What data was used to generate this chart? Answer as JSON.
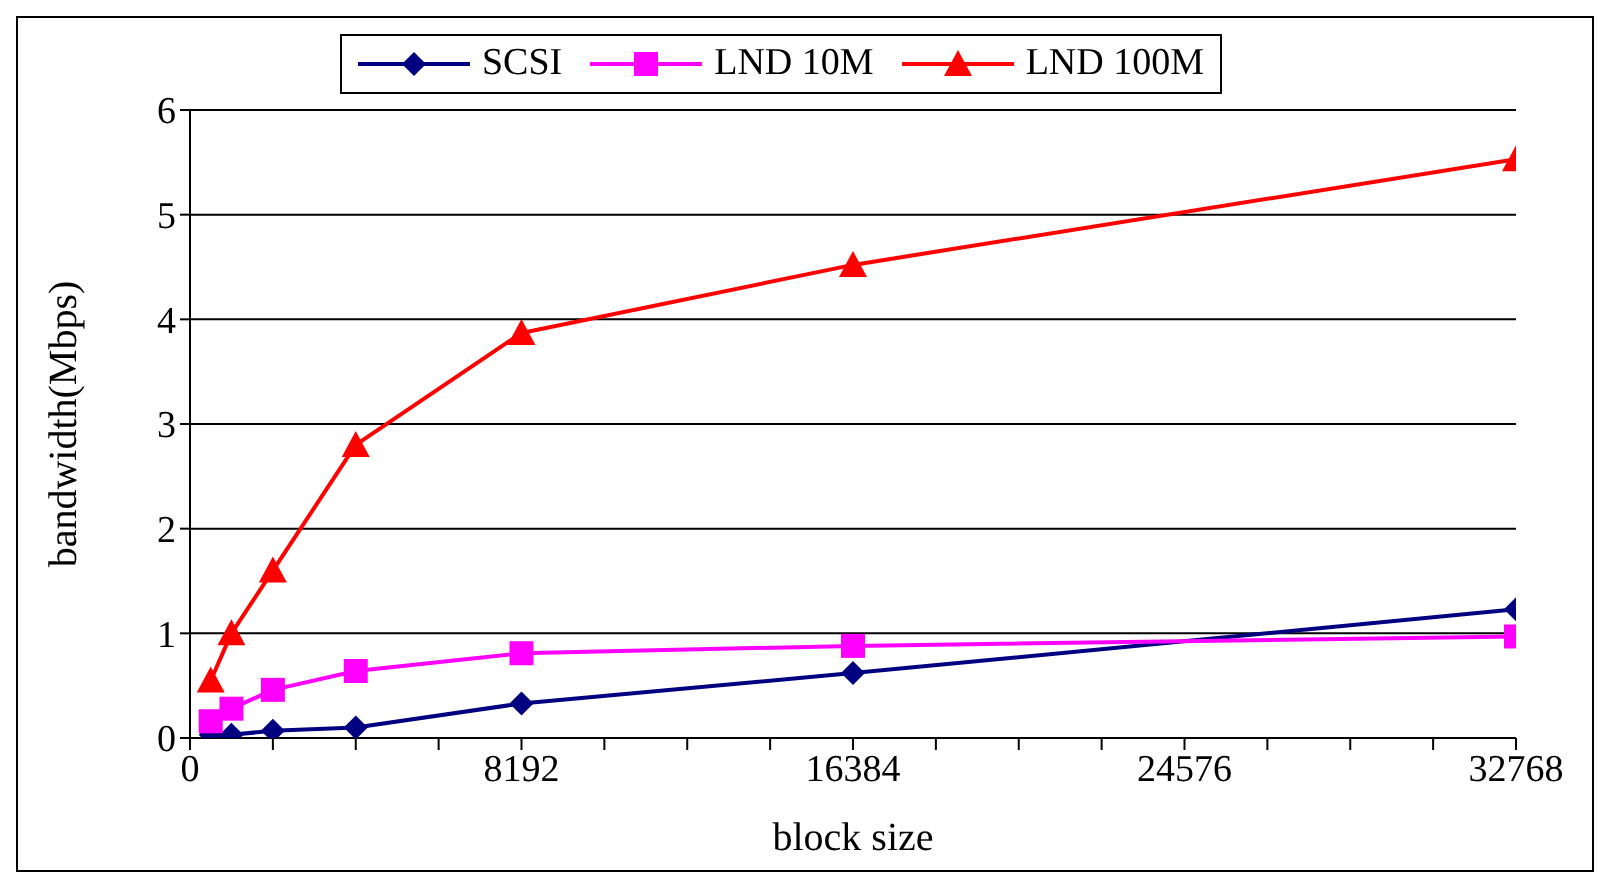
{
  "chart_data": {
    "type": "line",
    "xlabel": "block size",
    "ylabel": "bandwidth(Mbps)",
    "x": [
      512,
      1024,
      2048,
      4096,
      8192,
      16384,
      32768
    ],
    "series": [
      {
        "name": "SCSI",
        "color": "#000080",
        "marker": "diamond",
        "values": [
          0.03,
          0.03,
          0.07,
          0.1,
          0.33,
          0.62,
          1.23
        ]
      },
      {
        "name": "LND 10M",
        "color": "#ff00ff",
        "marker": "square",
        "values": [
          0.16,
          0.28,
          0.46,
          0.64,
          0.81,
          0.88,
          0.97
        ]
      },
      {
        "name": "LND 100M",
        "color": "#ff0000",
        "marker": "triangle",
        "values": [
          0.55,
          1.0,
          1.6,
          2.8,
          3.87,
          4.52,
          5.53
        ]
      }
    ],
    "xlim": [
      0,
      32768
    ],
    "xticks": [
      0,
      {
        "value": 2048,
        "label": null
      },
      {
        "value": 4096,
        "label": null
      },
      {
        "value": 6144,
        "label": null
      },
      8192,
      {
        "value": 10240,
        "label": null
      },
      {
        "value": 12288,
        "label": null
      },
      {
        "value": 14336,
        "label": null
      },
      16384,
      {
        "value": 18432,
        "label": null
      },
      {
        "value": 20480,
        "label": null
      },
      {
        "value": 22528,
        "label": null
      },
      24576,
      {
        "value": 26624,
        "label": null
      },
      {
        "value": 28672,
        "label": null
      },
      {
        "value": 30720,
        "label": null
      },
      32768
    ],
    "ylim": [
      0,
      6
    ],
    "yticks": [
      0,
      1,
      2,
      3,
      4,
      5,
      6
    ],
    "grid": "y",
    "legend": "top",
    "line_style": "solid"
  }
}
